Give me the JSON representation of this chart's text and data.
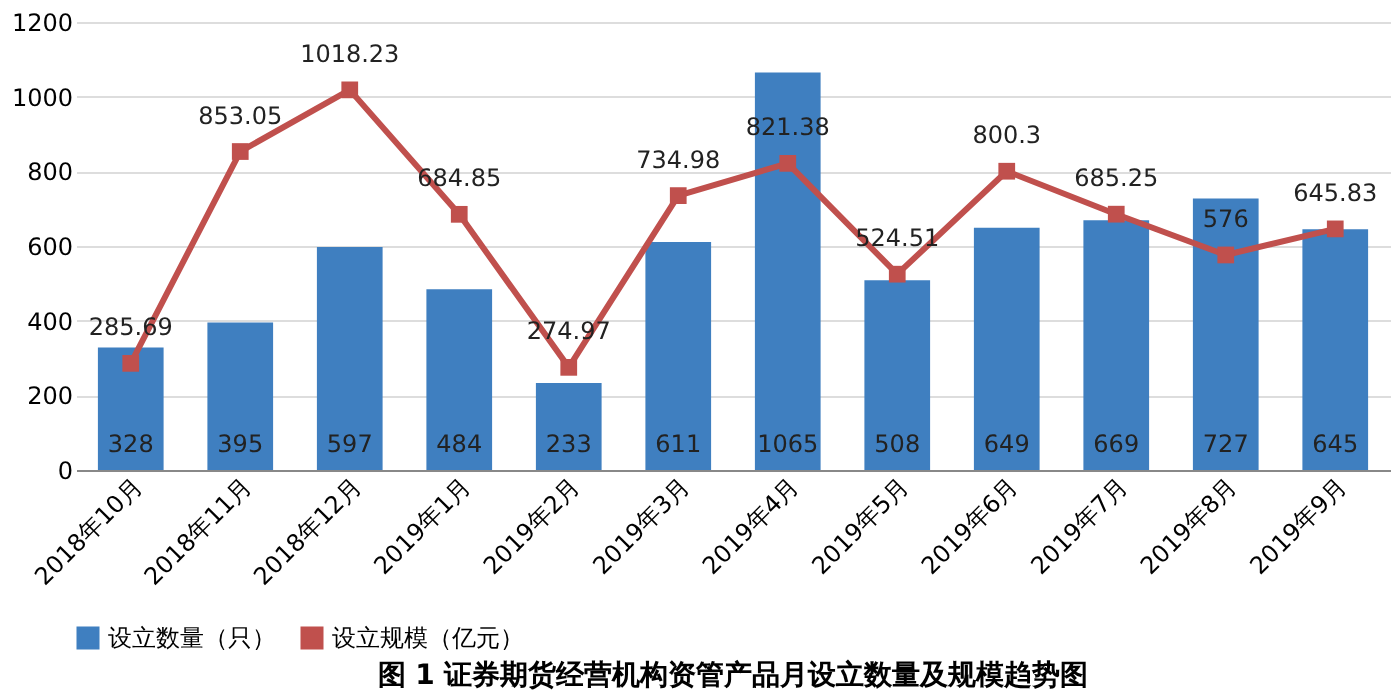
{
  "chart_data": {
    "type": "bar",
    "title": "图 1 证券期货经营机构资管产品月设立数量及规模趋势图",
    "categories": [
      "2018年10月",
      "2018年11月",
      "2018年12月",
      "2019年1月",
      "2019年2月",
      "2019年3月",
      "2019年4月",
      "2019年5月",
      "2019年6月",
      "2019年7月",
      "2019年8月",
      "2019年9月"
    ],
    "series": [
      {
        "name": "设立数量（只）",
        "color": "#3f7fc0",
        "values": [
          328,
          395,
          597,
          484,
          233,
          611,
          1065,
          508,
          649,
          669,
          727,
          645
        ]
      },
      {
        "name": "设立规模（亿元）",
        "type": "line",
        "color": "#c0504d",
        "marker": "square",
        "values": [
          285.69,
          853.05,
          1018.23,
          684.85,
          274.97,
          734.98,
          821.38,
          524.51,
          800.3,
          685.25,
          576,
          645.83
        ]
      }
    ],
    "ylim": [
      0,
      1200
    ],
    "yticks": [
      0,
      200,
      400,
      600,
      800,
      1000,
      1200
    ],
    "grid": "y",
    "legend": "bottom",
    "data_labels": true
  }
}
